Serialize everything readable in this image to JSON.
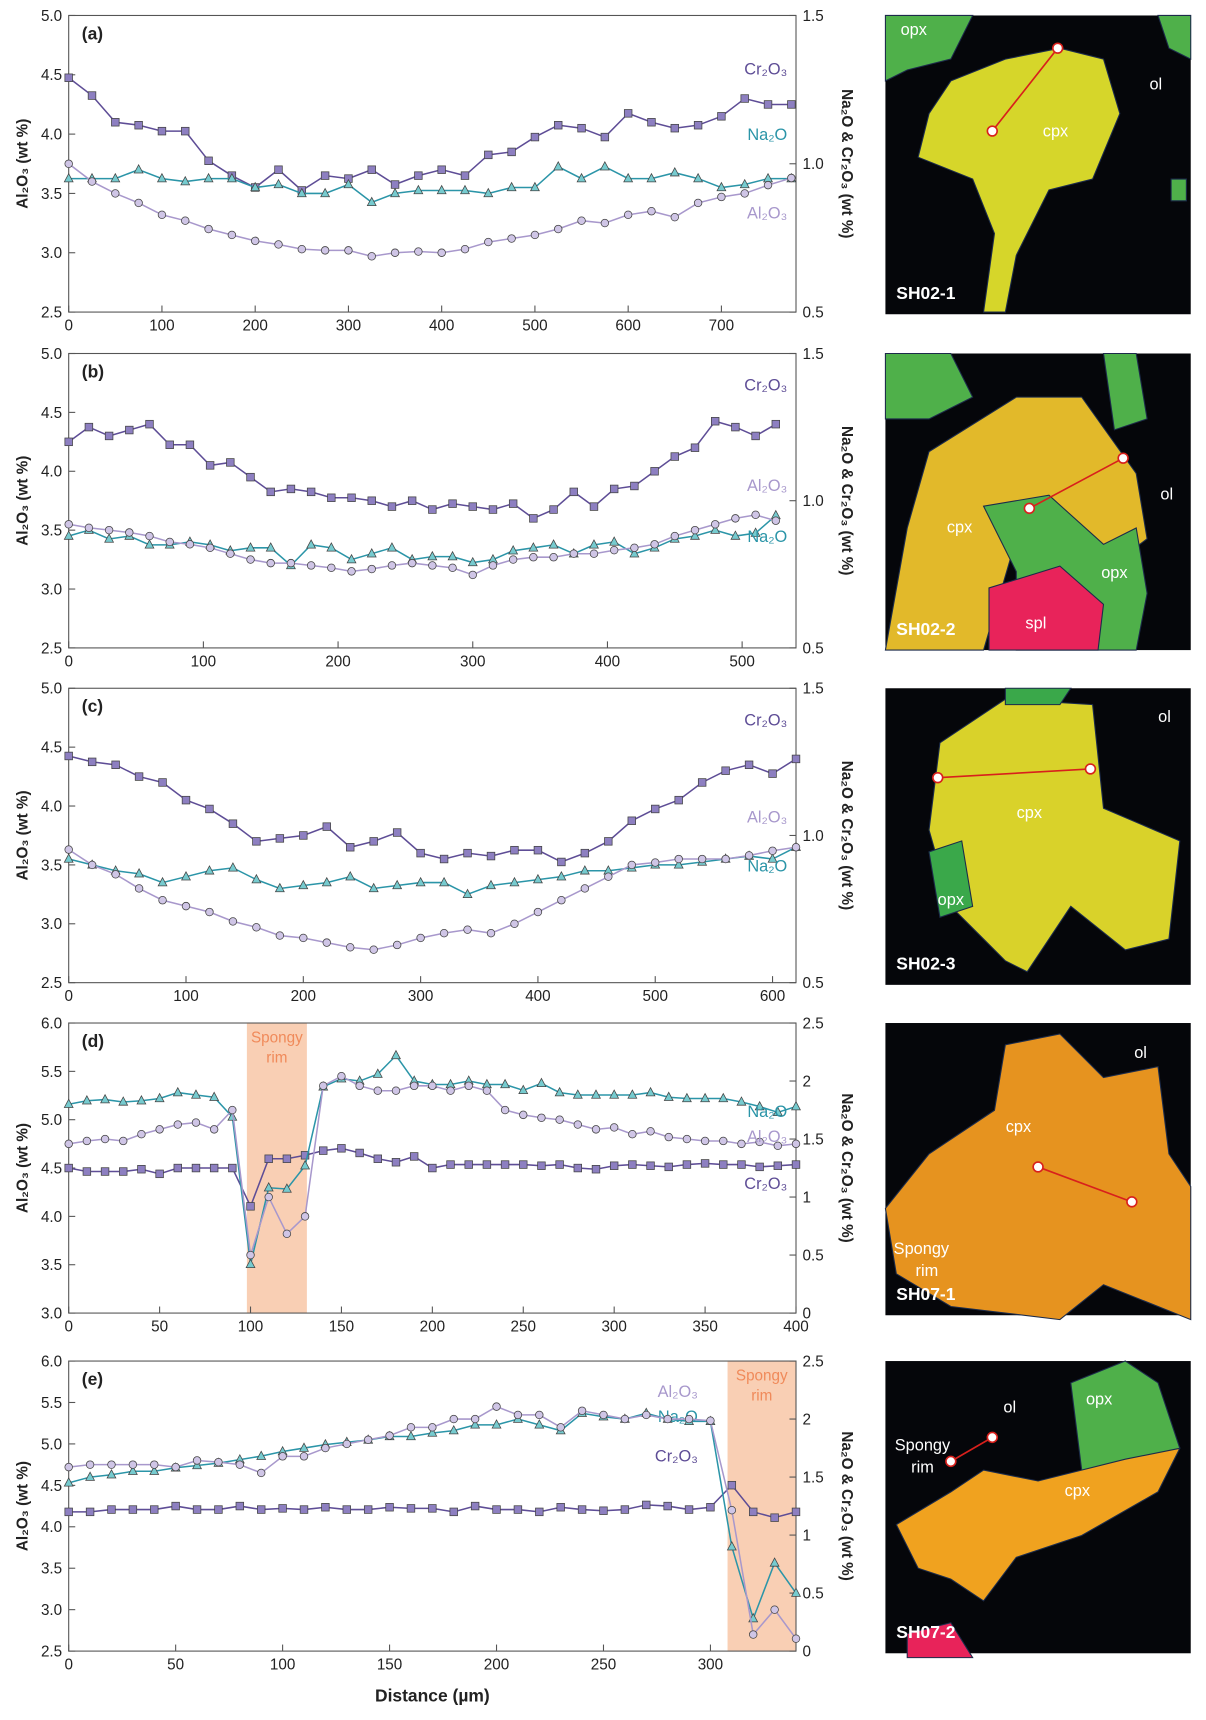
{
  "chart_data": [
    {
      "type": "line",
      "title": "(a)",
      "ylabel": "Al₂O₃ (wt %)",
      "y2label": "Na₂O & Cr₂O₃ (wt %)",
      "x": [
        0,
        25,
        50,
        75,
        100,
        125,
        150,
        175,
        200,
        225,
        250,
        275,
        300,
        325,
        350,
        375,
        400,
        425,
        450,
        475,
        500,
        525,
        550,
        575,
        600,
        625,
        650,
        675,
        700,
        725,
        750,
        775
      ],
      "xlim": [
        0,
        780
      ],
      "xticks": [
        0,
        100,
        200,
        300,
        400,
        500,
        600,
        700
      ],
      "ylim": [
        2.5,
        5.0
      ],
      "yticks": [
        2.5,
        {
          "value": 3,
          "label": "3.0"
        },
        3.5,
        {
          "value": 4,
          "label": "4.0"
        },
        4.5,
        {
          "value": 5,
          "label": "5.0"
        }
      ],
      "y2lim": [
        0.5,
        1.5
      ],
      "y2ticks": [
        0.5,
        {
          "value": 1,
          "label": "1.0"
        },
        1.5
      ],
      "series": [
        {
          "name": "Cr₂O₃",
          "axis": "y2",
          "marker": "square",
          "color": "#5e4d96",
          "fill": "#8d7fc1",
          "values": [
            1.29,
            1.23,
            1.14,
            1.13,
            1.11,
            1.11,
            1.01,
            0.96,
            0.92,
            0.98,
            0.91,
            0.96,
            0.95,
            0.98,
            0.93,
            0.96,
            0.98,
            0.96,
            1.03,
            1.04,
            1.09,
            1.13,
            1.12,
            1.09,
            1.17,
            1.14,
            1.12,
            1.13,
            1.16,
            1.22,
            1.2,
            1.2
          ]
        },
        {
          "name": "Na₂O",
          "axis": "y2",
          "marker": "triangle",
          "color": "#2b95a8",
          "fill": "#76cbcf",
          "values": [
            0.95,
            0.95,
            0.95,
            0.98,
            0.95,
            0.94,
            0.95,
            0.95,
            0.92,
            0.93,
            0.9,
            0.9,
            0.93,
            0.87,
            0.9,
            0.91,
            0.91,
            0.91,
            0.9,
            0.92,
            0.92,
            0.99,
            0.95,
            0.99,
            0.95,
            0.95,
            0.97,
            0.95,
            0.92,
            0.93,
            0.95,
            0.95
          ]
        },
        {
          "name": "Al₂O₃",
          "marker": "circle",
          "color": "#a898cc",
          "fill": "#cfc5e6",
          "values": [
            3.75,
            3.6,
            3.5,
            3.42,
            3.32,
            3.27,
            3.2,
            3.15,
            3.1,
            3.07,
            3.03,
            3.02,
            3.02,
            2.97,
            3.0,
            3.01,
            3.0,
            3.03,
            3.09,
            3.12,
            3.15,
            3.2,
            3.27,
            3.25,
            3.32,
            3.35,
            3.3,
            3.42,
            3.47,
            3.5,
            3.57,
            3.63
          ]
        }
      ],
      "micrograph": {
        "labels": [
          "opx",
          "ol",
          "cpx"
        ],
        "sample": "SH02-1"
      }
    },
    {
      "type": "line",
      "title": "(b)",
      "ylabel": "Al₂O₃ (wt %)",
      "y2label": "Na₂O & Cr₂O₃ (wt %)",
      "x": [
        0,
        15,
        30,
        45,
        60,
        75,
        90,
        105,
        120,
        135,
        150,
        165,
        180,
        195,
        210,
        225,
        240,
        255,
        270,
        285,
        300,
        315,
        330,
        345,
        360,
        375,
        390,
        405,
        420,
        435,
        450,
        465,
        480,
        495,
        510,
        525
      ],
      "xlim": [
        0,
        540
      ],
      "xticks": [
        0,
        100,
        200,
        300,
        400,
        500
      ],
      "ylim": [
        2.5,
        5.0
      ],
      "yticks": [
        2.5,
        {
          "value": 3,
          "label": "3.0"
        },
        3.5,
        {
          "value": 4,
          "label": "4.0"
        },
        4.5,
        {
          "value": 5,
          "label": "5.0"
        }
      ],
      "y2lim": [
        0.5,
        1.5
      ],
      "y2ticks": [
        0.5,
        {
          "value": 1,
          "label": "1.0"
        },
        1.5
      ],
      "series": [
        {
          "name": "Cr₂O₃",
          "axis": "y2",
          "marker": "square",
          "color": "#5e4d96",
          "fill": "#8d7fc1",
          "values": [
            1.2,
            1.25,
            1.22,
            1.24,
            1.26,
            1.19,
            1.19,
            1.12,
            1.13,
            1.08,
            1.03,
            1.04,
            1.03,
            1.01,
            1.01,
            1.0,
            0.98,
            1.0,
            0.97,
            0.99,
            0.98,
            0.97,
            0.99,
            0.94,
            0.97,
            1.03,
            0.98,
            1.04,
            1.05,
            1.1,
            1.15,
            1.18,
            1.27,
            1.25,
            1.22,
            1.26
          ]
        },
        {
          "name": "Na₂O",
          "axis": "y2",
          "marker": "triangle",
          "color": "#2b95a8",
          "fill": "#76cbcf",
          "values": [
            0.88,
            0.9,
            0.87,
            0.88,
            0.85,
            0.85,
            0.86,
            0.85,
            0.83,
            0.84,
            0.84,
            0.78,
            0.85,
            0.84,
            0.8,
            0.82,
            0.84,
            0.8,
            0.81,
            0.81,
            0.79,
            0.8,
            0.83,
            0.84,
            0.85,
            0.82,
            0.85,
            0.86,
            0.82,
            0.84,
            0.87,
            0.88,
            0.9,
            0.88,
            0.89,
            0.95
          ]
        },
        {
          "name": "Al₂O₃",
          "marker": "circle",
          "color": "#a898cc",
          "fill": "#cfc5e6",
          "values": [
            3.55,
            3.52,
            3.5,
            3.48,
            3.45,
            3.4,
            3.38,
            3.35,
            3.3,
            3.25,
            3.22,
            3.22,
            3.2,
            3.18,
            3.15,
            3.17,
            3.2,
            3.22,
            3.2,
            3.18,
            3.12,
            3.2,
            3.25,
            3.27,
            3.27,
            3.3,
            3.3,
            3.33,
            3.35,
            3.38,
            3.45,
            3.5,
            3.55,
            3.6,
            3.63,
            3.58
          ]
        }
      ],
      "micrograph": {
        "labels": [
          "cpx",
          "ol",
          "opx",
          "spl"
        ],
        "sample": "SH02-2"
      }
    },
    {
      "type": "line",
      "title": "(c)",
      "ylabel": "Al₂O₃ (wt %)",
      "y2label": "Na₂O & Cr₂O₃ (wt %)",
      "x": [
        0,
        20,
        40,
        60,
        80,
        100,
        120,
        140,
        160,
        180,
        200,
        220,
        240,
        260,
        280,
        300,
        320,
        340,
        360,
        380,
        400,
        420,
        440,
        460,
        480,
        500,
        520,
        540,
        560,
        580,
        600,
        620
      ],
      "xlim": [
        0,
        620
      ],
      "xticks": [
        0,
        100,
        200,
        300,
        400,
        500,
        600
      ],
      "ylim": [
        2.5,
        5.0
      ],
      "yticks": [
        2.5,
        {
          "value": 3,
          "label": "3.0"
        },
        3.5,
        {
          "value": 4,
          "label": "4.0"
        },
        4.5,
        {
          "value": 5,
          "label": "5.0"
        }
      ],
      "y2lim": [
        0.5,
        1.5
      ],
      "y2ticks": [
        0.5,
        {
          "value": 1,
          "label": "1.0"
        },
        1.5
      ],
      "series": [
        {
          "name": "Cr₂O₃",
          "axis": "y2",
          "marker": "square",
          "color": "#5e4d96",
          "fill": "#8d7fc1",
          "values": [
            1.27,
            1.25,
            1.24,
            1.2,
            1.18,
            1.12,
            1.09,
            1.04,
            0.98,
            0.99,
            1.0,
            1.03,
            0.96,
            0.98,
            1.01,
            0.94,
            0.92,
            0.94,
            0.93,
            0.95,
            0.95,
            0.91,
            0.94,
            0.98,
            1.05,
            1.09,
            1.12,
            1.18,
            1.22,
            1.24,
            1.21,
            1.26
          ]
        },
        {
          "name": "Na₂O",
          "axis": "y2",
          "marker": "triangle",
          "color": "#2b95a8",
          "fill": "#76cbcf",
          "values": [
            0.92,
            0.9,
            0.88,
            0.87,
            0.84,
            0.86,
            0.88,
            0.89,
            0.85,
            0.82,
            0.83,
            0.84,
            0.86,
            0.82,
            0.83,
            0.84,
            0.84,
            0.8,
            0.83,
            0.84,
            0.85,
            0.86,
            0.88,
            0.88,
            0.89,
            0.9,
            0.9,
            0.91,
            0.92,
            0.93,
            0.92,
            0.96
          ]
        },
        {
          "name": "Al₂O₃",
          "marker": "circle",
          "color": "#a898cc",
          "fill": "#cfc5e6",
          "values": [
            3.63,
            3.5,
            3.42,
            3.3,
            3.2,
            3.15,
            3.1,
            3.02,
            2.97,
            2.9,
            2.88,
            2.84,
            2.8,
            2.78,
            2.82,
            2.88,
            2.92,
            2.95,
            2.92,
            3.0,
            3.1,
            3.2,
            3.3,
            3.4,
            3.5,
            3.52,
            3.55,
            3.55,
            3.55,
            3.58,
            3.62,
            3.65
          ]
        }
      ],
      "micrograph": {
        "labels": [
          "ol",
          "cpx",
          "opx"
        ],
        "sample": "SH02-3"
      }
    },
    {
      "type": "line",
      "title": "(d)",
      "ylabel": "Al₂O₃ (wt %)",
      "y2label": "Na₂O & Cr₂O₃ (wt %)",
      "x": [
        0,
        10,
        20,
        30,
        40,
        50,
        60,
        70,
        80,
        90,
        100,
        110,
        120,
        130,
        140,
        150,
        160,
        170,
        180,
        190,
        200,
        210,
        220,
        230,
        240,
        250,
        260,
        270,
        280,
        290,
        300,
        310,
        320,
        330,
        340,
        350,
        360,
        370,
        380,
        390,
        400
      ],
      "xlim": [
        0,
        400
      ],
      "xticks": [
        0,
        50,
        100,
        150,
        200,
        250,
        300,
        350,
        400
      ],
      "ylim": [
        3.0,
        6.0
      ],
      "yticks": [
        {
          "value": 3,
          "label": "3.0"
        },
        3.5,
        {
          "value": 4,
          "label": "4.0"
        },
        4.5,
        {
          "value": 5,
          "label": "5.0"
        },
        5.5,
        {
          "value": 6,
          "label": "6.0"
        }
      ],
      "y2lim": [
        0,
        2.5
      ],
      "y2ticks": [
        0,
        0.5,
        1,
        1.5,
        2,
        2.5
      ],
      "series": [
        {
          "name": "Cr₂O₃",
          "axis": "y2",
          "marker": "square",
          "color": "#5e4d96",
          "fill": "#8d7fc1",
          "values": [
            1.25,
            1.22,
            1.22,
            1.22,
            1.24,
            1.2,
            1.25,
            1.25,
            1.25,
            1.25,
            0.92,
            1.33,
            1.33,
            1.36,
            1.4,
            1.42,
            1.38,
            1.33,
            1.3,
            1.35,
            1.25,
            1.28,
            1.28,
            1.28,
            1.28,
            1.28,
            1.27,
            1.28,
            1.25,
            1.24,
            1.27,
            1.28,
            1.27,
            1.26,
            1.28,
            1.29,
            1.28,
            1.28,
            1.26,
            1.27,
            1.28
          ]
        },
        {
          "name": "Na₂O",
          "axis": "y2",
          "marker": "triangle",
          "color": "#2b95a8",
          "fill": "#76cbcf",
          "values": [
            1.8,
            1.83,
            1.84,
            1.82,
            1.83,
            1.85,
            1.9,
            1.88,
            1.86,
            1.69,
            0.42,
            1.08,
            1.07,
            1.27,
            1.95,
            2.02,
            2.0,
            2.06,
            2.22,
            2.0,
            1.97,
            1.97,
            2.0,
            1.97,
            1.97,
            1.92,
            1.98,
            1.9,
            1.88,
            1.88,
            1.88,
            1.88,
            1.9,
            1.86,
            1.85,
            1.85,
            1.85,
            1.82,
            1.78,
            1.73,
            1.78
          ]
        },
        {
          "name": "Al₂O₃",
          "marker": "circle",
          "color": "#a898cc",
          "fill": "#cfc5e6",
          "values": [
            4.75,
            4.78,
            4.8,
            4.78,
            4.85,
            4.9,
            4.95,
            4.97,
            4.9,
            5.1,
            3.6,
            4.2,
            3.82,
            4.0,
            5.35,
            5.45,
            5.35,
            5.3,
            5.3,
            5.35,
            5.35,
            5.3,
            5.35,
            5.3,
            5.1,
            5.05,
            5.02,
            5.0,
            4.95,
            4.9,
            4.92,
            4.85,
            4.88,
            4.82,
            4.8,
            4.78,
            4.78,
            4.75,
            4.77,
            4.73,
            4.75
          ]
        }
      ],
      "spongy_rim": {
        "x": [
          98,
          131
        ],
        "label": [
          "Spongy",
          "rim"
        ]
      },
      "micrograph": {
        "labels": [
          "ol",
          "cpx",
          "Spongy",
          "rim"
        ],
        "sample": "SH07-1"
      }
    },
    {
      "type": "line",
      "title": "(e)",
      "ylabel": "Al₂O₃ (wt %)",
      "y2label": "Na₂O & Cr₂O₃ (wt %)",
      "xlabel": "Distance (µm)",
      "x": [
        0,
        10,
        20,
        30,
        40,
        50,
        60,
        70,
        80,
        90,
        100,
        110,
        120,
        130,
        140,
        150,
        160,
        170,
        180,
        190,
        200,
        210,
        220,
        230,
        240,
        250,
        260,
        270,
        280,
        290,
        300,
        310,
        320,
        330,
        340
      ],
      "xlim": [
        0,
        340
      ],
      "xticks": [
        0,
        50,
        100,
        150,
        200,
        250,
        300
      ],
      "ylim": [
        2.5,
        6.0
      ],
      "yticks": [
        2.5,
        {
          "value": 3,
          "label": "3.0"
        },
        3.5,
        {
          "value": 4,
          "label": "4.0"
        },
        4.5,
        {
          "value": 5,
          "label": "5.0"
        },
        5.5,
        {
          "value": 6,
          "label": "6.0"
        }
      ],
      "y2lim": [
        0,
        2.5
      ],
      "y2ticks": [
        0,
        0.5,
        1,
        1.5,
        2,
        2.5
      ],
      "series": [
        {
          "name": "Cr₂O₃",
          "axis": "y2",
          "marker": "square",
          "color": "#5e4d96",
          "fill": "#8d7fc1",
          "values": [
            1.2,
            1.2,
            1.22,
            1.22,
            1.22,
            1.25,
            1.22,
            1.22,
            1.25,
            1.22,
            1.23,
            1.22,
            1.24,
            1.22,
            1.22,
            1.24,
            1.23,
            1.23,
            1.2,
            1.25,
            1.22,
            1.22,
            1.2,
            1.24,
            1.22,
            1.21,
            1.22,
            1.26,
            1.25,
            1.22,
            1.24,
            1.43,
            1.2,
            1.15,
            1.2
          ]
        },
        {
          "name": "Na₂O",
          "axis": "y2",
          "marker": "triangle",
          "color": "#2b95a8",
          "fill": "#76cbcf",
          "values": [
            1.45,
            1.5,
            1.52,
            1.55,
            1.55,
            1.58,
            1.6,
            1.62,
            1.65,
            1.68,
            1.72,
            1.75,
            1.78,
            1.8,
            1.82,
            1.85,
            1.85,
            1.88,
            1.9,
            1.95,
            1.95,
            2.0,
            1.95,
            1.9,
            2.05,
            2.02,
            2.0,
            2.05,
            2.0,
            1.98,
            1.98,
            0.9,
            0.28,
            0.76,
            0.5
          ]
        },
        {
          "name": "Al₂O₃",
          "marker": "circle",
          "color": "#a898cc",
          "fill": "#cfc5e6",
          "values": [
            4.72,
            4.75,
            4.75,
            4.75,
            4.75,
            4.72,
            4.8,
            4.78,
            4.75,
            4.65,
            4.85,
            4.85,
            4.95,
            5.0,
            5.05,
            5.1,
            5.2,
            5.2,
            5.3,
            5.3,
            5.45,
            5.35,
            5.35,
            5.2,
            5.4,
            5.35,
            5.3,
            5.35,
            5.3,
            5.3,
            5.28,
            4.2,
            2.7,
            3.0,
            2.65
          ]
        }
      ],
      "spongy_rim": {
        "x": [
          308,
          340
        ],
        "label": [
          "Spongy",
          "rim"
        ]
      },
      "micrograph": {
        "labels": [
          "ol",
          "opx",
          "cpx",
          "Spongy",
          "rim"
        ],
        "sample": "SH07-2"
      }
    }
  ]
}
